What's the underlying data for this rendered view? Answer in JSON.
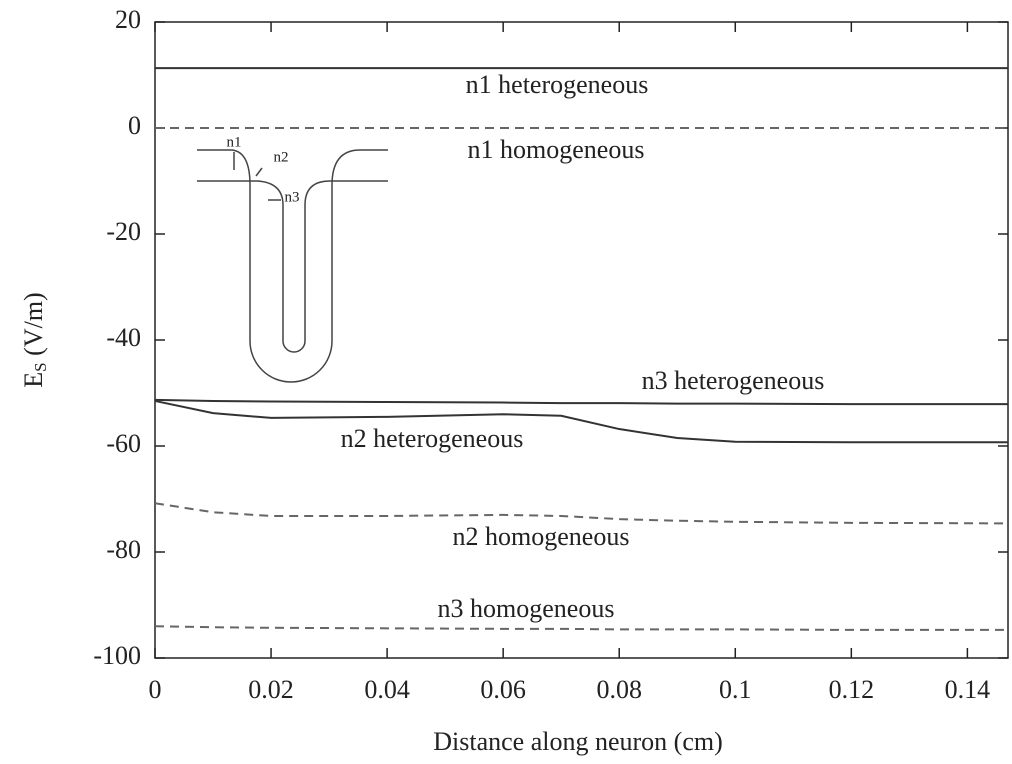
{
  "chart_data": {
    "type": "line",
    "ylabel": [
      "E",
      "S",
      " (V/m)"
    ],
    "xlabel": "Distance along neuron (cm)",
    "x": [
      0,
      0.01,
      0.02,
      0.04,
      0.06,
      0.07,
      0.08,
      0.09,
      0.1,
      0.12,
      0.147
    ],
    "series": [
      {
        "name": "n1 heterogeneous",
        "color": "#333333",
        "dash": false,
        "values": [
          11.3,
          11.3,
          11.3,
          11.3,
          11.3,
          11.3,
          11.3,
          11.3,
          11.3,
          11.3,
          11.3
        ]
      },
      {
        "name": "n1 homogeneous",
        "color": "#666666",
        "dash": true,
        "values": [
          0,
          0,
          0,
          0,
          0,
          0,
          0,
          0,
          0,
          0,
          0
        ]
      },
      {
        "name": "n3 heterogeneous",
        "color": "#333333",
        "dash": false,
        "values": [
          -51.3,
          -51.5,
          -51.6,
          -51.7,
          -51.8,
          -51.9,
          -51.9,
          -52,
          -52,
          -52.1,
          -52.1
        ]
      },
      {
        "name": "n2 heterogeneous",
        "color": "#333333",
        "dash": false,
        "values": [
          -51.5,
          -53.8,
          -54.7,
          -54.5,
          -54,
          -54.3,
          -56.8,
          -58.5,
          -59.2,
          -59.3,
          -59.3
        ]
      },
      {
        "name": "n2 homogeneous",
        "color": "#666666",
        "dash": true,
        "values": [
          -70.8,
          -72.5,
          -73.2,
          -73.2,
          -73,
          -73.2,
          -73.8,
          -74.1,
          -74.3,
          -74.5,
          -74.6
        ]
      },
      {
        "name": "n3 homogeneous",
        "color": "#666666",
        "dash": true,
        "values": [
          -94,
          -94.2,
          -94.3,
          -94.4,
          -94.5,
          -94.5,
          -94.6,
          -94.6,
          -94.6,
          -94.7,
          -94.7
        ]
      }
    ],
    "xlim": [
      0,
      0.147
    ],
    "ylim": [
      -100,
      20
    ],
    "xticks": [
      0,
      0.02,
      0.04,
      0.06,
      0.08,
      0.1,
      0.12,
      0.14
    ],
    "yticks": [
      -100,
      -80,
      -60,
      -40,
      -20,
      0,
      20
    ],
    "grid": false,
    "inset_labels": [
      "n1",
      "n2",
      "n3"
    ]
  }
}
